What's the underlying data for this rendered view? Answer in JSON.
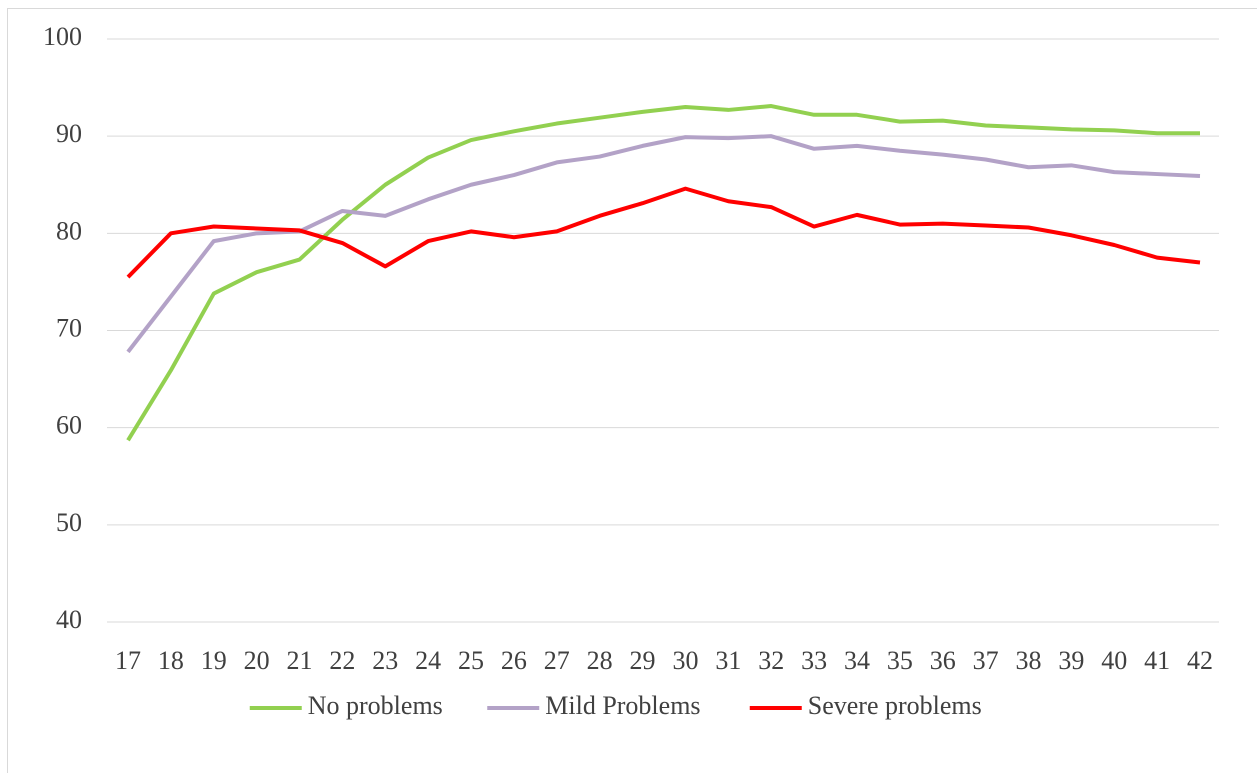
{
  "chart_data": {
    "type": "line",
    "categories": [
      "17",
      "18",
      "19",
      "20",
      "21",
      "22",
      "23",
      "24",
      "25",
      "26",
      "27",
      "28",
      "29",
      "30",
      "31",
      "32",
      "33",
      "34",
      "35",
      "36",
      "37",
      "38",
      "39",
      "40",
      "41",
      "42"
    ],
    "series": [
      {
        "name": "No problems",
        "color": "#92d050",
        "values": [
          58.7,
          65.9,
          73.8,
          76.0,
          77.3,
          81.4,
          85.0,
          87.8,
          89.6,
          90.5,
          91.3,
          91.9,
          92.5,
          93.0,
          92.7,
          93.1,
          92.2,
          92.2,
          91.5,
          91.6,
          91.1,
          90.9,
          90.7,
          90.6,
          90.3,
          90.3
        ]
      },
      {
        "name": "Mild Problems",
        "color": "#b3a2c7",
        "values": [
          67.8,
          73.5,
          79.2,
          80.0,
          80.2,
          82.3,
          81.8,
          83.5,
          85.0,
          86.0,
          87.3,
          87.9,
          89.0,
          89.9,
          89.8,
          90.0,
          88.7,
          89.0,
          88.5,
          88.1,
          87.6,
          86.8,
          87.0,
          86.3,
          86.1,
          85.9
        ]
      },
      {
        "name": "Severe problems",
        "color": "#ff0000",
        "values": [
          75.5,
          80.0,
          80.7,
          80.5,
          80.3,
          79.0,
          76.6,
          79.2,
          80.2,
          79.6,
          80.2,
          81.8,
          83.1,
          84.6,
          83.3,
          82.7,
          80.7,
          81.9,
          80.9,
          81.0,
          80.8,
          80.6,
          79.8,
          78.8,
          77.5,
          77.0
        ]
      }
    ],
    "ylim": [
      40,
      100
    ],
    "yticks": [
      40,
      50,
      60,
      70,
      80,
      90,
      100
    ],
    "grid": true,
    "legend": "bottom"
  }
}
